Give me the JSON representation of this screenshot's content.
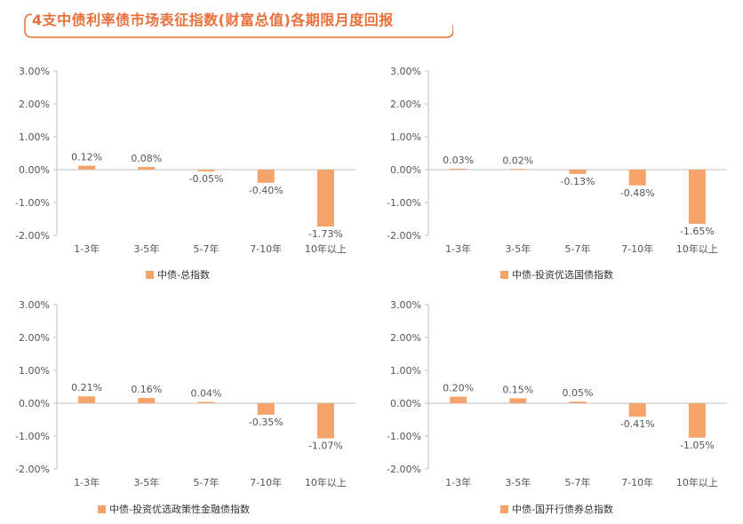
{
  "title": "4支中债利率债市场表征指数(财富总值)各期限月度回报",
  "colors": {
    "title": "#e8703a",
    "bar": "#f4a46a",
    "frame": "#e8703a",
    "axis": "#bfbfbf",
    "text": "#555555"
  },
  "chart_data": [
    {
      "type": "bar",
      "categories": [
        "1-3年",
        "3-5年",
        "5-7年",
        "7-10年",
        "10年以上"
      ],
      "series": [
        {
          "name": "中债-总指数",
          "values": [
            0.12,
            0.08,
            -0.05,
            -0.4,
            -1.73
          ]
        }
      ],
      "data_labels": [
        "0.12%",
        "0.08%",
        "-0.05%",
        "-0.40%",
        "-1.73%"
      ],
      "y_ticks": [
        "3.00%",
        "2.00%",
        "1.00%",
        "0.00%",
        "-1.00%",
        "-2.00%"
      ],
      "ylim": [
        -2,
        3
      ],
      "legend": "bottom"
    },
    {
      "type": "bar",
      "categories": [
        "1-3年",
        "3-5年",
        "5-7年",
        "7-10年",
        "10年以上"
      ],
      "series": [
        {
          "name": "中债-投资优选国债指数",
          "values": [
            0.03,
            0.02,
            -0.13,
            -0.48,
            -1.65
          ]
        }
      ],
      "data_labels": [
        "0.03%",
        "0.02%",
        "-0.13%",
        "-0.48%",
        "-1.65%"
      ],
      "y_ticks": [
        "3.00%",
        "2.00%",
        "1.00%",
        "0.00%",
        "-1.00%",
        "-2.00%"
      ],
      "ylim": [
        -2,
        3
      ],
      "legend": "bottom"
    },
    {
      "type": "bar",
      "categories": [
        "1-3年",
        "3-5年",
        "5-7年",
        "7-10年",
        "10年以上"
      ],
      "series": [
        {
          "name": "中债-投资优选政策性金融债指数",
          "values": [
            0.21,
            0.16,
            0.04,
            -0.35,
            -1.07
          ]
        }
      ],
      "data_labels": [
        "0.21%",
        "0.16%",
        "0.04%",
        "-0.35%",
        "-1.07%"
      ],
      "y_ticks": [
        "3.00%",
        "2.00%",
        "1.00%",
        "0.00%",
        "-1.00%",
        "-2.00%"
      ],
      "ylim": [
        -2,
        3
      ],
      "legend": "bottom"
    },
    {
      "type": "bar",
      "categories": [
        "1-3年",
        "3-5年",
        "5-7年",
        "7-10年",
        "10年以上"
      ],
      "series": [
        {
          "name": "中债-国开行债券总指数",
          "values": [
            0.2,
            0.15,
            0.05,
            -0.41,
            -1.05
          ]
        }
      ],
      "data_labels": [
        "0.20%",
        "0.15%",
        "0.05%",
        "-0.41%",
        "-1.05%"
      ],
      "y_ticks": [
        "3.00%",
        "2.00%",
        "1.00%",
        "0.00%",
        "-1.00%",
        "-2.00%"
      ],
      "ylim": [
        -2,
        3
      ],
      "legend": "bottom"
    }
  ]
}
